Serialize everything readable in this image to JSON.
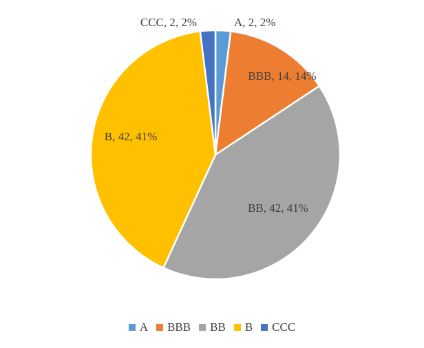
{
  "chart_data": {
    "type": "pie",
    "title": "",
    "categories": [
      "A",
      "BBB",
      "BB",
      "B",
      "CCC"
    ],
    "values": [
      2,
      14,
      42,
      42,
      2
    ],
    "percentages": [
      "2%",
      "14%",
      "41%",
      "41%",
      "2%"
    ],
    "data_labels": [
      "A, 2, 2%",
      "BBB, 14, 14%",
      "BB, 42, 41%",
      "B, 42, 41%",
      "CCC, 2, 2%"
    ],
    "colors": [
      "#5b9bd5",
      "#ed7d31",
      "#a5a5a5",
      "#ffc000",
      "#4472c4"
    ],
    "legend_position": "bottom",
    "start_angle": "top, clockwise"
  }
}
